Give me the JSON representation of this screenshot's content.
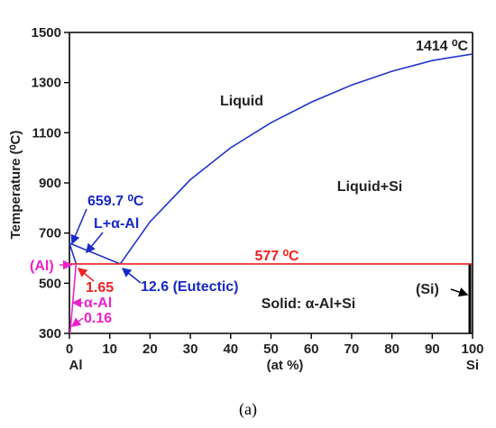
{
  "chart_data": {
    "type": "line",
    "title": "",
    "xlabel": "(at %)",
    "ylabel": "Temperature (⁰C)",
    "xlim": [
      0,
      100
    ],
    "ylim": [
      300,
      1500
    ],
    "x_ticks": [
      "0",
      "10",
      "20",
      "30",
      "40",
      "50",
      "60",
      "70",
      "80",
      "90",
      "100"
    ],
    "y_ticks": [
      "300",
      "500",
      "700",
      "900",
      "1100",
      "1300",
      "1500"
    ],
    "x_end_labels": {
      "left": "Al",
      "right": "Si"
    },
    "colors": {
      "liquidus": "#2233cc",
      "eutectic_line": "#ee2222",
      "solvus": "#ee22cc",
      "frame": "#000000"
    },
    "series": [
      {
        "name": "",
        "values_desc": "",
        "x": [
          12.6,
          20,
          30,
          40,
          50,
          60,
          70,
          80,
          90,
          100
        ],
        "y": [
          577,
          745,
          913,
          1040,
          1140,
          1222,
          1290,
          1345,
          1388,
          1414
        ]
      },
      {
        "name": "",
        "x": [
          0,
          12.6
        ],
        "y": [
          659.7,
          577
        ]
      },
      {
        "name": "",
        "x": [
          0,
          1.65
        ],
        "y": [
          659.7,
          577
        ]
      },
      {
        "name": "",
        "x": [
          0,
          100
        ],
        "y": [
          577,
          577
        ]
      },
      {
        "name": "",
        "x": [
          1.65,
          0.16
        ],
        "y": [
          577,
          300
        ]
      }
    ],
    "annotations": {
      "liquid": "Liquid",
      "liquid_si": "Liquid+Si",
      "solid": "Solid: α-Al+Si",
      "si_melt": "1414 ⁰C",
      "al_melt": "659.7 ⁰C",
      "l_alpha": "L+α-Al",
      "eutectic_temp": "577 ⁰C",
      "eutectic_comp": "12.6 (Eutectic)",
      "al_phase": "(Al)",
      "solubility_max": "1.65",
      "alpha_al": "α-Al",
      "solubility_min": "0.16",
      "si_phase": "(Si)"
    }
  },
  "caption": "(a)"
}
